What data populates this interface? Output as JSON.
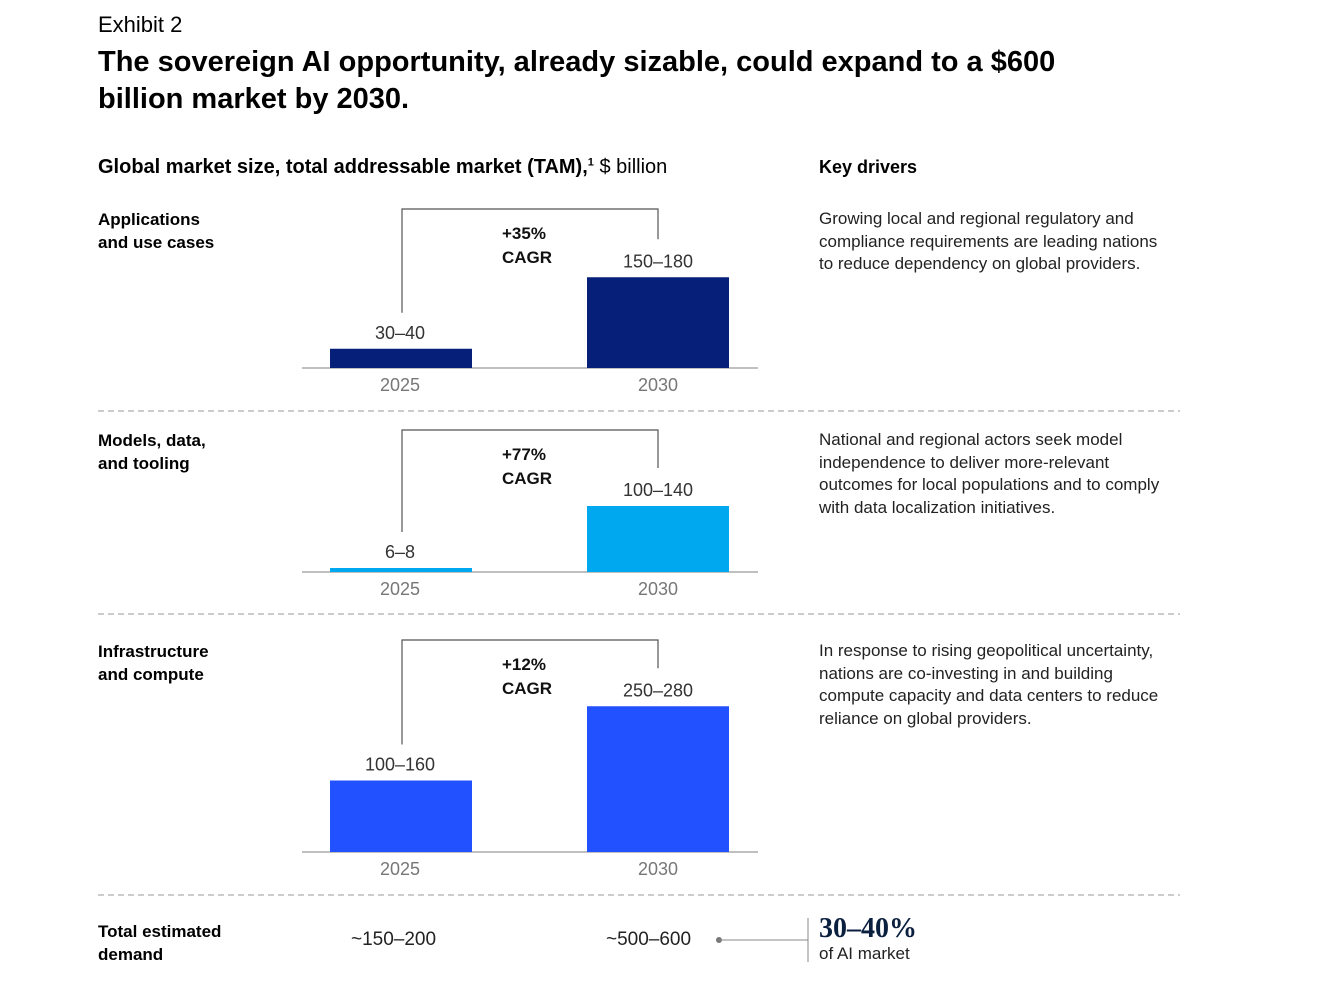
{
  "exhibit_label": "Exhibit 2",
  "title": "The sovereign AI opportunity, already sizable, could expand to a $600 billion market by 2030.",
  "subtitle": {
    "bold": "Global market size, total addressable market (TAM),",
    "footnote": "1",
    "unit": " $ billion"
  },
  "drivers_heading": "Key drivers",
  "colors": {
    "applications": "#061f78",
    "models": "#00a8f0",
    "infrastructure": "#2251ff",
    "axis": "#9a9a9a",
    "bracket": "#555555",
    "divider": "#9a9a9a"
  },
  "chart_data": [
    {
      "type": "bar",
      "segment_lines": [
        "Applications",
        "and use cases"
      ],
      "categories": [
        "2025",
        "2030"
      ],
      "value_labels": [
        "30–40",
        "150–180"
      ],
      "values": [
        35,
        165
      ],
      "cagr": [
        "+35%",
        "CAGR"
      ],
      "driver": "Growing local and regional regulatory and compliance requirements are leading nations to reduce dependency on global providers."
    },
    {
      "type": "bar",
      "segment_lines": [
        "Models, data,",
        "and tooling"
      ],
      "categories": [
        "2025",
        "2030"
      ],
      "value_labels": [
        "6–8",
        "100–140"
      ],
      "values": [
        7,
        120
      ],
      "cagr": [
        "+77%",
        "CAGR"
      ],
      "driver": "National and regional actors seek model independence to deliver more-relevant outcomes for local populations and to comply with data localization initiatives."
    },
    {
      "type": "bar",
      "segment_lines": [
        "Infrastructure",
        "and compute"
      ],
      "categories": [
        "2025",
        "2030"
      ],
      "value_labels": [
        "100–160",
        "250–280"
      ],
      "values": [
        130,
        265
      ],
      "cagr": [
        "+12%",
        "CAGR"
      ],
      "driver": "In response to rising geopolitical uncertainty, nations are co-investing in and building compute capacity and data centers to reduce reliance on global providers."
    }
  ],
  "total": {
    "label_lines": [
      "Total estimated",
      "demand"
    ],
    "value_2025": "~150–200",
    "value_2030": "~500–600",
    "share_big": "30–40%",
    "share_small": "of AI market"
  }
}
